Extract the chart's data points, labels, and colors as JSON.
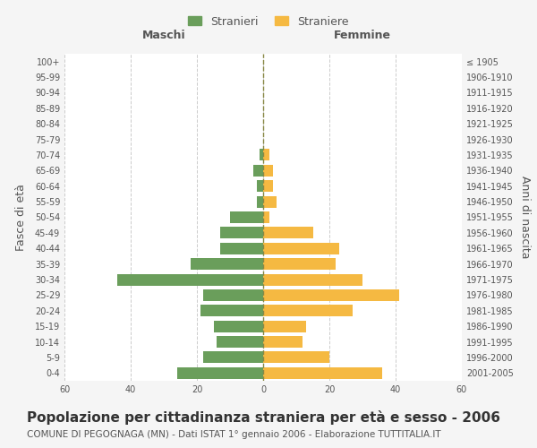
{
  "age_groups": [
    "0-4",
    "5-9",
    "10-14",
    "15-19",
    "20-24",
    "25-29",
    "30-34",
    "35-39",
    "40-44",
    "45-49",
    "50-54",
    "55-59",
    "60-64",
    "65-69",
    "70-74",
    "75-79",
    "80-84",
    "85-89",
    "90-94",
    "95-99",
    "100+"
  ],
  "birth_years": [
    "2001-2005",
    "1996-2000",
    "1991-1995",
    "1986-1990",
    "1981-1985",
    "1976-1980",
    "1971-1975",
    "1966-1970",
    "1961-1965",
    "1956-1960",
    "1951-1955",
    "1946-1950",
    "1941-1945",
    "1936-1940",
    "1931-1935",
    "1926-1930",
    "1921-1925",
    "1916-1920",
    "1911-1915",
    "1906-1910",
    "≤ 1905"
  ],
  "maschi": [
    26,
    18,
    14,
    15,
    19,
    18,
    44,
    22,
    13,
    13,
    10,
    2,
    2,
    3,
    1,
    0,
    0,
    0,
    0,
    0,
    0
  ],
  "femmine": [
    36,
    20,
    12,
    13,
    27,
    41,
    30,
    22,
    23,
    15,
    2,
    4,
    3,
    3,
    2,
    0,
    0,
    0,
    0,
    0,
    0
  ],
  "maschi_color": "#6a9e5b",
  "femmine_color": "#f5b942",
  "background_color": "#f5f5f5",
  "plot_bg_color": "#ffffff",
  "grid_color": "#cccccc",
  "title": "Popolazione per cittadinanza straniera per età e sesso - 2006",
  "subtitle": "COMUNE DI PEGOGNAGA (MN) - Dati ISTAT 1° gennaio 2006 - Elaborazione TUTTITALIA.IT",
  "xlabel_left": "Maschi",
  "xlabel_right": "Femmine",
  "ylabel_left": "Fasce di età",
  "ylabel_right": "Anni di nascita",
  "legend_stranieri": "Stranieri",
  "legend_straniere": "Straniere",
  "xlim": 60,
  "title_fontsize": 11,
  "subtitle_fontsize": 7.5,
  "tick_fontsize": 7,
  "label_fontsize": 9
}
